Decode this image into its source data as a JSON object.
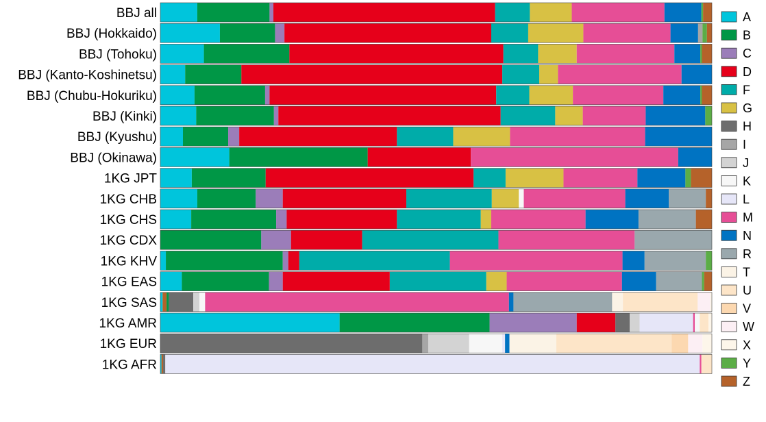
{
  "chart_data": {
    "type": "bar",
    "orientation": "horizontal",
    "stacked": true,
    "normalized": true,
    "xlim": [
      0,
      1
    ],
    "grid": false,
    "legend_placement": "right",
    "categories": [
      "BBJ all",
      "BBJ (Hokkaido)",
      "BBJ (Tohoku)",
      "BBJ (Kanto-Koshinetsu)",
      "BBJ (Chubu-Hokuriku)",
      "BBJ (Kinki)",
      "BBJ (Kyushu)",
      "BBJ (Okinawa)",
      "1KG JPT",
      "1KG CHB",
      "1KG CHS",
      "1KG CDX",
      "1KG KHV",
      "1KG EAS",
      "1KG SAS",
      "1KG AMR",
      "1KG EUR",
      "1KG AFR"
    ],
    "legend": [
      {
        "name": "A",
        "color": "#00C5DC"
      },
      {
        "name": "B",
        "color": "#009746"
      },
      {
        "name": "C",
        "color": "#9B7DB9"
      },
      {
        "name": "D",
        "color": "#E6001A"
      },
      {
        "name": "F",
        "color": "#00ACA9"
      },
      {
        "name": "G",
        "color": "#D8C144"
      },
      {
        "name": "H",
        "color": "#6D6D6D"
      },
      {
        "name": "I",
        "color": "#A6A6A6"
      },
      {
        "name": "J",
        "color": "#D3D3D3"
      },
      {
        "name": "K",
        "color": "#F7F7F7"
      },
      {
        "name": "L",
        "color": "#E6E6F8"
      },
      {
        "name": "M",
        "color": "#E64E96"
      },
      {
        "name": "N",
        "color": "#0073C2"
      },
      {
        "name": "R",
        "color": "#9AA8AD"
      },
      {
        "name": "T",
        "color": "#FBF3E6"
      },
      {
        "name": "U",
        "color": "#FDE5C8"
      },
      {
        "name": "V",
        "color": "#FCD8B0"
      },
      {
        "name": "W",
        "color": "#FCEFF4"
      },
      {
        "name": "X",
        "color": "#FDF6EA"
      },
      {
        "name": "Y",
        "color": "#5BAD46"
      },
      {
        "name": "Z",
        "color": "#B5622A"
      }
    ],
    "rows": [
      {
        "label": "BBJ all",
        "segments": [
          [
            "A",
            0.067
          ],
          [
            "B",
            0.131
          ],
          [
            "C",
            0.007
          ],
          [
            "D",
            0.402
          ],
          [
            "F",
            0.063
          ],
          [
            "G",
            0.076
          ],
          [
            "M",
            0.168
          ],
          [
            "N",
            0.067
          ],
          [
            "Y",
            0.003
          ],
          [
            "Z",
            0.016
          ]
        ]
      },
      {
        "label": "BBJ (Hokkaido)",
        "segments": [
          [
            "A",
            0.108
          ],
          [
            "B",
            0.1
          ],
          [
            "C",
            0.017
          ],
          [
            "D",
            0.375
          ],
          [
            "F",
            0.067
          ],
          [
            "G",
            0.1
          ],
          [
            "M",
            0.158
          ],
          [
            "N",
            0.05
          ],
          [
            "I",
            0.008
          ],
          [
            "Y",
            0.008
          ],
          [
            "Z",
            0.009
          ]
        ]
      },
      {
        "label": "BBJ (Tohoku)",
        "segments": [
          [
            "A",
            0.079
          ],
          [
            "B",
            0.155
          ],
          [
            "D",
            0.388
          ],
          [
            "F",
            0.063
          ],
          [
            "G",
            0.07
          ],
          [
            "M",
            0.177
          ],
          [
            "N",
            0.047
          ],
          [
            "Y",
            0.003
          ],
          [
            "Z",
            0.018
          ]
        ]
      },
      {
        "label": "BBJ (Kanto-Koshinetsu)",
        "segments": [
          [
            "A",
            0.045
          ],
          [
            "B",
            0.102
          ],
          [
            "D",
            0.473
          ],
          [
            "F",
            0.067
          ],
          [
            "G",
            0.034
          ],
          [
            "M",
            0.224
          ],
          [
            "N",
            0.055
          ]
        ]
      },
      {
        "label": "BBJ (Chubu-Hokuriku)",
        "segments": [
          [
            "A",
            0.062
          ],
          [
            "B",
            0.128
          ],
          [
            "C",
            0.008
          ],
          [
            "D",
            0.411
          ],
          [
            "F",
            0.06
          ],
          [
            "G",
            0.079
          ],
          [
            "M",
            0.164
          ],
          [
            "N",
            0.067
          ],
          [
            "Y",
            0.003
          ],
          [
            "Z",
            0.018
          ]
        ]
      },
      {
        "label": "BBJ (Kinki)",
        "segments": [
          [
            "A",
            0.065
          ],
          [
            "B",
            0.141
          ],
          [
            "C",
            0.008
          ],
          [
            "D",
            0.403
          ],
          [
            "F",
            0.099
          ],
          [
            "G",
            0.05
          ],
          [
            "M",
            0.114
          ],
          [
            "N",
            0.108
          ],
          [
            "Y",
            0.012
          ]
        ]
      },
      {
        "label": "BBJ (Kyushu)",
        "segments": [
          [
            "A",
            0.041
          ],
          [
            "B",
            0.082
          ],
          [
            "C",
            0.02
          ],
          [
            "D",
            0.286
          ],
          [
            "F",
            0.102
          ],
          [
            "G",
            0.103
          ],
          [
            "M",
            0.245
          ],
          [
            "N",
            0.121
          ]
        ]
      },
      {
        "label": "BBJ (Okinawa)",
        "segments": [
          [
            "A",
            0.125
          ],
          [
            "B",
            0.251
          ],
          [
            "D",
            0.187
          ],
          [
            "M",
            0.376
          ],
          [
            "N",
            0.061
          ]
        ]
      },
      {
        "label": "1KG JPT",
        "segments": [
          [
            "A",
            0.057
          ],
          [
            "B",
            0.134
          ],
          [
            "D",
            0.377
          ],
          [
            "F",
            0.058
          ],
          [
            "G",
            0.105
          ],
          [
            "M",
            0.134
          ],
          [
            "N",
            0.087
          ],
          [
            "Y",
            0.01
          ],
          [
            "Z",
            0.038
          ]
        ]
      },
      {
        "label": "1KG CHB",
        "segments": [
          [
            "A",
            0.067
          ],
          [
            "B",
            0.106
          ],
          [
            "C",
            0.049
          ],
          [
            "D",
            0.224
          ],
          [
            "F",
            0.155
          ],
          [
            "G",
            0.049
          ],
          [
            "K",
            0.009
          ],
          [
            "M",
            0.184
          ],
          [
            "N",
            0.079
          ],
          [
            "R",
            0.067
          ],
          [
            "Z",
            0.011
          ]
        ]
      },
      {
        "label": "1KG CHS",
        "segments": [
          [
            "A",
            0.056
          ],
          [
            "B",
            0.154
          ],
          [
            "C",
            0.019
          ],
          [
            "D",
            0.2
          ],
          [
            "F",
            0.152
          ],
          [
            "G",
            0.019
          ],
          [
            "M",
            0.171
          ],
          [
            "N",
            0.096
          ],
          [
            "R",
            0.104
          ],
          [
            "Z",
            0.029
          ]
        ]
      },
      {
        "label": "1KG CDX",
        "segments": [
          [
            "B",
            0.183
          ],
          [
            "C",
            0.054
          ],
          [
            "D",
            0.129
          ],
          [
            "F",
            0.247
          ],
          [
            "M",
            0.247
          ],
          [
            "R",
            0.14
          ]
        ]
      },
      {
        "label": "1KG KHV",
        "segments": [
          [
            "A",
            0.01
          ],
          [
            "B",
            0.212
          ],
          [
            "C",
            0.01
          ],
          [
            "D",
            0.02
          ],
          [
            "F",
            0.273
          ],
          [
            "M",
            0.313
          ],
          [
            "N",
            0.04
          ],
          [
            "R",
            0.111
          ],
          [
            "Y",
            0.011
          ]
        ]
      },
      {
        "label": "1KG EAS",
        "segments": [
          [
            "A",
            0.039
          ],
          [
            "B",
            0.158
          ],
          [
            "C",
            0.025
          ],
          [
            "D",
            0.194
          ],
          [
            "F",
            0.175
          ],
          [
            "G",
            0.037
          ],
          [
            "M",
            0.209
          ],
          [
            "N",
            0.062
          ],
          [
            "R",
            0.083
          ],
          [
            "Y",
            0.004
          ],
          [
            "Z",
            0.014
          ]
        ]
      },
      {
        "label": "1KG SAS",
        "segments": [
          [
            "A",
            0.004
          ],
          [
            "Z",
            0.007
          ],
          [
            "B",
            0.004
          ],
          [
            "H",
            0.043
          ],
          [
            "J",
            0.011
          ],
          [
            "K",
            0.01
          ],
          [
            "M",
            0.536
          ],
          [
            "N",
            0.008
          ],
          [
            "R",
            0.174
          ],
          [
            "T",
            0.019
          ],
          [
            "U",
            0.132
          ],
          [
            "W",
            0.022
          ],
          [
            "X",
            0.003
          ]
        ]
      },
      {
        "label": "1KG AMR",
        "segments": [
          [
            "A",
            0.325
          ],
          [
            "B",
            0.272
          ],
          [
            "C",
            0.158
          ],
          [
            "D",
            0.07
          ],
          [
            "H",
            0.026
          ],
          [
            "J",
            0.018
          ],
          [
            "L",
            0.097
          ],
          [
            "M",
            0.003
          ],
          [
            "K",
            0.009
          ],
          [
            "U",
            0.016
          ],
          [
            "X",
            0.006
          ]
        ]
      },
      {
        "label": "1KG EUR",
        "segments": [
          [
            "H",
            0.475
          ],
          [
            "I",
            0.011
          ],
          [
            "J",
            0.074
          ],
          [
            "K",
            0.06
          ],
          [
            "L",
            0.005
          ],
          [
            "N",
            0.008
          ],
          [
            "T",
            0.085
          ],
          [
            "U",
            0.209
          ],
          [
            "V",
            0.03
          ],
          [
            "W",
            0.026
          ],
          [
            "X",
            0.017
          ]
        ]
      },
      {
        "label": "1KG AFR",
        "segments": [
          [
            "A",
            0.002
          ],
          [
            "Z",
            0.003
          ],
          [
            "H",
            0.004
          ],
          [
            "L",
            0.969
          ],
          [
            "M",
            0.003
          ],
          [
            "U",
            0.019
          ]
        ]
      }
    ]
  }
}
